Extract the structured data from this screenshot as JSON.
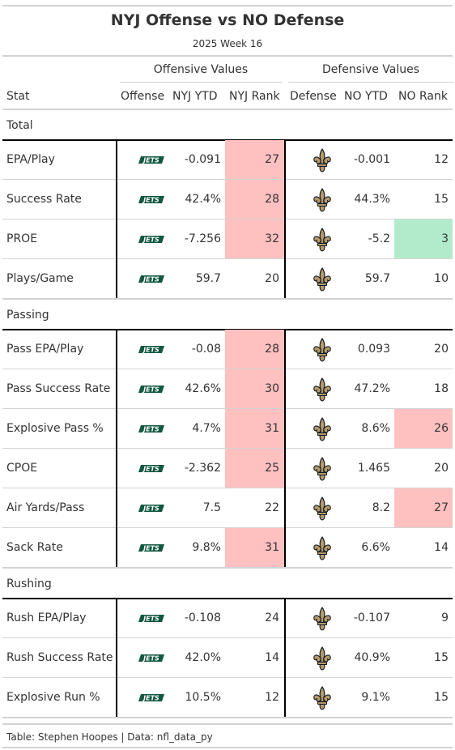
{
  "title": "NYJ Offense vs NO Defense",
  "subtitle": "2025 Week 16",
  "spanners": {
    "offense": "Offensive Values",
    "defense": "Defensive Values"
  },
  "columns": {
    "stat": "Stat",
    "offense": "Offense",
    "off_ytd": "NYJ YTD",
    "off_rank": "NYJ Rank",
    "defense": "Defense",
    "def_ytd": "NO YTD",
    "def_rank": "NO Rank"
  },
  "colors": {
    "bad": "#ffc0c0",
    "good": "#b2ebcc",
    "jets_green": "#125740",
    "saints_gold": "#b59a6a",
    "saints_black": "#101820"
  },
  "icons": {
    "offense": "jets-logo",
    "defense": "fleur-de-lis-logo"
  },
  "chart_data": {
    "type": "table",
    "groups": [
      {
        "label": "Total",
        "rows": [
          {
            "stat": "EPA/Play",
            "off_ytd": "-0.091",
            "off_rank": "27",
            "off_hl": "bad",
            "def_ytd": "-0.001",
            "def_rank": "12",
            "def_hl": ""
          },
          {
            "stat": "Success Rate",
            "off_ytd": "42.4%",
            "off_rank": "28",
            "off_hl": "bad",
            "def_ytd": "44.3%",
            "def_rank": "15",
            "def_hl": ""
          },
          {
            "stat": "PROE",
            "off_ytd": "-7.256",
            "off_rank": "32",
            "off_hl": "bad",
            "def_ytd": "-5.2",
            "def_rank": "3",
            "def_hl": "good"
          },
          {
            "stat": "Plays/Game",
            "off_ytd": "59.7",
            "off_rank": "20",
            "off_hl": "",
            "def_ytd": "59.7",
            "def_rank": "10",
            "def_hl": ""
          }
        ]
      },
      {
        "label": "Passing",
        "rows": [
          {
            "stat": "Pass EPA/Play",
            "off_ytd": "-0.08",
            "off_rank": "28",
            "off_hl": "bad",
            "def_ytd": "0.093",
            "def_rank": "20",
            "def_hl": ""
          },
          {
            "stat": "Pass Success Rate",
            "off_ytd": "42.6%",
            "off_rank": "30",
            "off_hl": "bad",
            "def_ytd": "47.2%",
            "def_rank": "18",
            "def_hl": ""
          },
          {
            "stat": "Explosive Pass %",
            "off_ytd": "4.7%",
            "off_rank": "31",
            "off_hl": "bad",
            "def_ytd": "8.6%",
            "def_rank": "26",
            "def_hl": "bad"
          },
          {
            "stat": "CPOE",
            "off_ytd": "-2.362",
            "off_rank": "25",
            "off_hl": "bad",
            "def_ytd": "1.465",
            "def_rank": "20",
            "def_hl": ""
          },
          {
            "stat": "Air Yards/Pass",
            "off_ytd": "7.5",
            "off_rank": "22",
            "off_hl": "",
            "def_ytd": "8.2",
            "def_rank": "27",
            "def_hl": "bad"
          },
          {
            "stat": "Sack Rate",
            "off_ytd": "9.8%",
            "off_rank": "31",
            "off_hl": "bad",
            "def_ytd": "6.6%",
            "def_rank": "14",
            "def_hl": ""
          }
        ]
      },
      {
        "label": "Rushing",
        "rows": [
          {
            "stat": "Rush EPA/Play",
            "off_ytd": "-0.108",
            "off_rank": "24",
            "off_hl": "",
            "def_ytd": "-0.107",
            "def_rank": "9",
            "def_hl": ""
          },
          {
            "stat": "Rush Success Rate",
            "off_ytd": "42.0%",
            "off_rank": "14",
            "off_hl": "",
            "def_ytd": "40.9%",
            "def_rank": "15",
            "def_hl": ""
          },
          {
            "stat": "Explosive Run %",
            "off_ytd": "10.5%",
            "off_rank": "12",
            "off_hl": "",
            "def_ytd": "9.1%",
            "def_rank": "15",
            "def_hl": ""
          }
        ]
      }
    ]
  },
  "footer": "Table: Stephen Hoopes | Data: nfl_data_py"
}
